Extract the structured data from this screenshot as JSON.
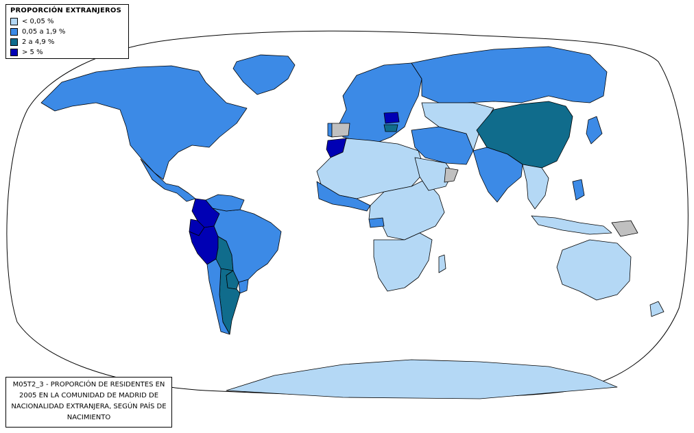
{
  "legend": {
    "title": "PROPORCIÓN EXTRANJEROS",
    "items": [
      {
        "label": "< 0,05 %",
        "color": "#b4d8f5"
      },
      {
        "label": "0,05 a 1,9 %",
        "color": "#3c8ae6"
      },
      {
        "label": "2 a 4,9 %",
        "color": "#106c8c"
      },
      {
        "label": "> 5 %",
        "color": "#0000b4"
      }
    ]
  },
  "caption": "M05T2_3 - PROPORCIÓN DE RESIDENTES EN 2005 EN LA COMUNIDAD DE MADRID DE NACIONALIDAD EXTRANJERA, SEGÚN PAÍS DE NACIMIENTO",
  "colors": {
    "no_data": "#c0c0c0",
    "border": "#000000"
  },
  "regions": [
    {
      "name": "north-america",
      "class": 1
    },
    {
      "name": "greenland",
      "class": 1
    },
    {
      "name": "central-america",
      "class": 1
    },
    {
      "name": "colombia",
      "class": 3
    },
    {
      "name": "ecuador",
      "class": 3
    },
    {
      "name": "peru",
      "class": 3
    },
    {
      "name": "bolivia",
      "class": 2
    },
    {
      "name": "brazil",
      "class": 1
    },
    {
      "name": "venezuela",
      "class": 1
    },
    {
      "name": "argentina",
      "class": 2
    },
    {
      "name": "chile",
      "class": 1
    },
    {
      "name": "paraguay",
      "class": 2
    },
    {
      "name": "uruguay",
      "class": 1
    },
    {
      "name": "europe",
      "class": 1
    },
    {
      "name": "romania",
      "class": 3
    },
    {
      "name": "bulgaria",
      "class": 2
    },
    {
      "name": "portugal",
      "class": 1
    },
    {
      "name": "spain",
      "class": -1
    },
    {
      "name": "morocco",
      "class": 3
    },
    {
      "name": "north-africa",
      "class": 0
    },
    {
      "name": "west-africa",
      "class": 1
    },
    {
      "name": "central-africa",
      "class": 0
    },
    {
      "name": "equatorial-guinea",
      "class": 1
    },
    {
      "name": "southern-africa",
      "class": 0
    },
    {
      "name": "madagascar",
      "class": 0
    },
    {
      "name": "middle-east",
      "class": 1
    },
    {
      "name": "arabian-peninsula",
      "class": 0
    },
    {
      "name": "oman",
      "class": -1
    },
    {
      "name": "russia",
      "class": 1
    },
    {
      "name": "central-asia",
      "class": 0
    },
    {
      "name": "china",
      "class": 2
    },
    {
      "name": "south-asia",
      "class": 1
    },
    {
      "name": "southeast-asia",
      "class": 0
    },
    {
      "name": "philippines",
      "class": 1
    },
    {
      "name": "japan",
      "class": 1
    },
    {
      "name": "indonesia",
      "class": 0
    },
    {
      "name": "papua",
      "class": -1
    },
    {
      "name": "australia",
      "class": 0
    },
    {
      "name": "new-zealand",
      "class": 0
    },
    {
      "name": "antarctica",
      "class": 0
    }
  ]
}
